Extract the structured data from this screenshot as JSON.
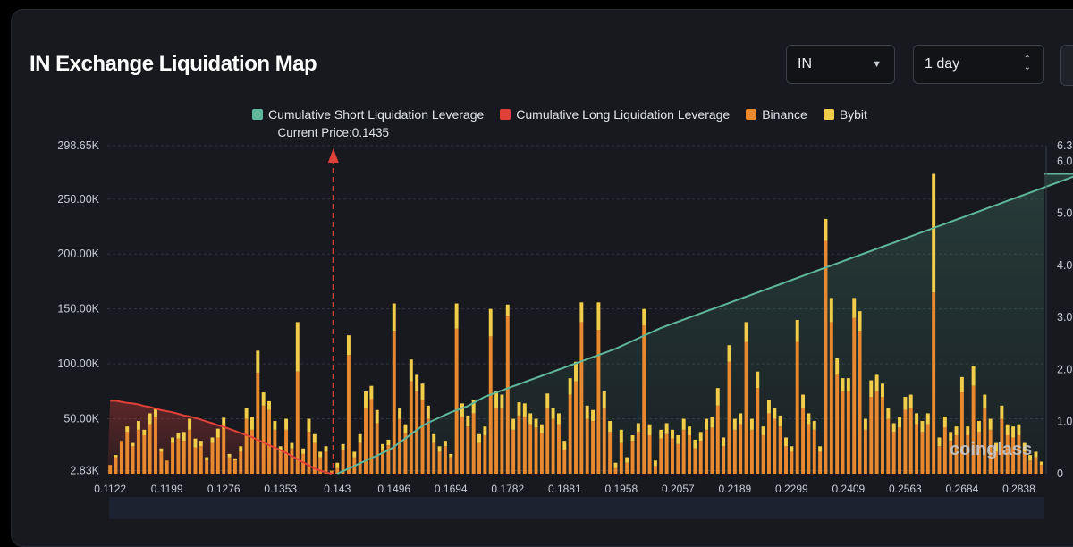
{
  "header": {
    "title": "IN Exchange Liquidation Map",
    "symbol_select": "IN",
    "range_select": "1 day"
  },
  "colors": {
    "short_cum": "#5fb79a",
    "long_cum": "#e0403a",
    "binance": "#e8892f",
    "bybit": "#f2cd4a"
  },
  "chart_data": {
    "type": "bar",
    "legend": [
      {
        "key": "short",
        "label": "Cumulative Short Liquidation Leverage",
        "color": "#5fb79a"
      },
      {
        "key": "long",
        "label": "Cumulative Long Liquidation Leverage",
        "color": "#e0403a"
      },
      {
        "key": "binance",
        "label": "Binance",
        "color": "#e8892f"
      },
      {
        "key": "bybit",
        "label": "Bybit",
        "color": "#f2cd4a"
      }
    ],
    "current_price_label": "Current Price:0.1435",
    "current_price": 0.1435,
    "x_ticks": [
      "0.1122",
      "0.1199",
      "0.1276",
      "0.1353",
      "0.143",
      "0.1496",
      "0.1694",
      "0.1782",
      "0.1881",
      "0.1958",
      "0.2057",
      "0.2189",
      "0.2299",
      "0.2409",
      "0.2563",
      "0.2684",
      "0.2838"
    ],
    "x_tick_index": [
      0,
      10,
      20,
      30,
      40,
      50,
      60,
      70,
      80,
      90,
      100,
      110,
      120,
      130,
      140,
      150,
      160
    ],
    "y_left_ticks": [
      "298.65K",
      "250.00K",
      "200.00K",
      "150.00K",
      "100.00K",
      "50.00K",
      "2.83K"
    ],
    "y_left_tick_values": [
      298650,
      250000,
      200000,
      150000,
      100000,
      50000,
      2830
    ],
    "y_right_ticks": [
      "6.3",
      "6.0",
      "5.0",
      "4.0",
      "3.0",
      "2.0",
      "1.0",
      "0"
    ],
    "y_right_tick_values": [
      6.3,
      6.0,
      5.0,
      4.0,
      3.0,
      2.0,
      1.0,
      0
    ],
    "ylim_left": [
      0,
      298650
    ],
    "ylim_right": [
      0,
      6.3
    ],
    "binance": [
      8000,
      15000,
      30000,
      38000,
      25000,
      40000,
      35000,
      45000,
      52000,
      20000,
      12000,
      28000,
      32000,
      30000,
      40000,
      24000,
      25000,
      12000,
      28000,
      33000,
      41000,
      15000,
      12000,
      20000,
      50000,
      40000,
      92000,
      62000,
      58000,
      40000,
      20000,
      40000,
      23000,
      93000,
      18000,
      38000,
      28000,
      15000,
      20000,
      2830,
      5000,
      22000,
      108000,
      15000,
      28000,
      60000,
      68000,
      46000,
      22000,
      26000,
      130000,
      50000,
      37000,
      84000,
      75000,
      67000,
      50000,
      28000,
      20000,
      25000,
      15000,
      132000,
      52000,
      43000,
      55000,
      28000,
      35000,
      125000,
      60000,
      60000,
      144000,
      40000,
      53000,
      52000,
      45000,
      42000,
      37000,
      60000,
      50000,
      45000,
      22000,
      72000,
      84000,
      138000,
      50000,
      48000,
      131000,
      60000,
      38000,
      5000,
      28000,
      10000,
      30000,
      38000,
      135000,
      35000,
      7000,
      32000,
      36000,
      32000,
      27000,
      40000,
      35000,
      23000,
      30000,
      40000,
      42000,
      62000,
      25000,
      102000,
      40000,
      45000,
      120000,
      40000,
      78000,
      35000,
      55000,
      50000,
      43000,
      25000,
      20000,
      120000,
      60000,
      45000,
      40000,
      20000,
      212000,
      138000,
      90000,
      75000,
      75000,
      142000,
      130000,
      40000,
      70000,
      75000,
      70000,
      50000,
      38000,
      42000,
      58000,
      60000,
      45000,
      38000,
      45000,
      165000,
      25000,
      42000,
      30000,
      35000,
      74000,
      35000,
      80000,
      38000,
      60000,
      40000,
      20000,
      50000,
      35000,
      33000,
      35000,
      20000,
      12000,
      15000,
      8000
    ],
    "bybit": [
      0,
      0,
      0,
      0,
      0,
      0,
      0,
      0,
      0,
      0,
      0,
      0,
      0,
      0,
      0,
      0,
      0,
      0,
      0,
      0,
      0,
      0,
      0,
      0,
      0,
      0,
      0,
      0,
      0,
      0,
      0,
      0,
      0,
      0,
      0,
      0,
      0,
      0,
      0,
      0,
      0,
      0,
      0,
      0,
      0,
      0,
      0,
      0,
      0,
      0,
      0,
      0,
      0,
      0,
      0,
      0,
      0,
      0,
      0,
      0,
      0,
      0,
      0,
      0,
      0,
      0,
      0,
      0,
      0,
      0,
      0,
      0,
      0,
      0,
      0,
      0,
      0,
      0,
      0,
      0,
      0,
      0,
      0,
      0,
      0,
      0,
      0,
      0,
      0,
      0,
      0,
      0,
      0,
      0,
      0,
      0,
      0,
      0,
      0,
      0,
      0,
      0,
      0,
      0,
      0,
      0,
      0,
      0,
      0,
      0,
      0,
      0,
      0,
      0,
      0,
      0,
      0,
      0,
      0,
      0,
      0,
      0,
      0,
      0,
      0,
      0,
      0,
      0,
      0,
      0,
      0,
      0,
      0,
      0,
      0,
      0,
      0,
      0,
      0,
      0,
      0,
      0,
      0,
      0,
      0,
      0,
      0,
      0,
      0,
      0,
      0,
      0,
      0,
      0,
      0,
      0,
      0,
      0,
      0,
      0,
      0,
      0,
      0,
      0,
      0,
      0,
      0
    ],
    "bybit_values": [
      0,
      2000,
      0,
      5000,
      3000,
      8000,
      5000,
      10000,
      8000,
      3000,
      0,
      5000,
      5000,
      8000,
      10000,
      8000,
      5000,
      3000,
      5000,
      8000,
      10000,
      3000,
      2000,
      5000,
      10000,
      12000,
      20000,
      12000,
      8000,
      8000,
      5000,
      10000,
      5000,
      45000,
      5000,
      12000,
      8000,
      5000,
      5000,
      0,
      5000,
      5000,
      18000,
      5000,
      8000,
      15000,
      12000,
      12000,
      5000,
      5000,
      25000,
      10000,
      8000,
      20000,
      15000,
      15000,
      12000,
      8000,
      5000,
      5000,
      3000,
      23000,
      12000,
      10000,
      12000,
      8000,
      8000,
      25000,
      15000,
      12000,
      10000,
      10000,
      12000,
      12000,
      10000,
      8000,
      8000,
      13000,
      10000,
      10000,
      8000,
      15000,
      18000,
      18000,
      12000,
      10000,
      25000,
      15000,
      10000,
      5000,
      12000,
      5000,
      5000,
      8000,
      15000,
      10000,
      5000,
      8000,
      10000,
      8000,
      8000,
      10000,
      8000,
      8000,
      8000,
      10000,
      10000,
      16000,
      8000,
      15000,
      10000,
      10000,
      18000,
      10000,
      15000,
      8000,
      12000,
      10000,
      10000,
      8000,
      5000,
      20000,
      12000,
      10000,
      8000,
      5000,
      20000,
      22000,
      15000,
      12000,
      12000,
      18000,
      18000,
      10000,
      15000,
      15000,
      12000,
      10000,
      8000,
      10000,
      12000,
      12000,
      10000,
      10000,
      10000,
      108000,
      8000,
      10000,
      8000,
      8000,
      14000,
      8000,
      18000,
      10000,
      12000,
      10000,
      8000,
      12000,
      10000,
      10000,
      10000,
      8000,
      5000,
      5000,
      3000
    ],
    "long_cum": [
      1.4,
      1.4,
      1.38,
      1.36,
      1.35,
      1.33,
      1.3,
      1.28,
      1.25,
      1.22,
      1.2,
      1.18,
      1.15,
      1.12,
      1.1,
      1.07,
      1.04,
      1.0,
      0.97,
      0.93,
      0.9,
      0.86,
      0.82,
      0.78,
      0.74,
      0.7,
      0.65,
      0.6,
      0.55,
      0.5,
      0.45,
      0.4,
      0.34,
      0.28,
      0.22,
      0.16,
      0.1,
      0.06,
      0.03,
      0.0
    ],
    "short_cum": [
      0.0,
      0.05,
      0.1,
      0.15,
      0.2,
      0.25,
      0.3,
      0.35,
      0.4,
      0.45,
      0.52,
      0.6,
      0.68,
      0.76,
      0.84,
      0.92,
      0.98,
      1.03,
      1.08,
      1.13,
      1.18,
      1.22,
      1.26,
      1.3,
      1.36,
      1.42,
      1.48,
      1.52,
      1.56,
      1.6,
      1.64,
      1.68,
      1.72,
      1.76,
      1.8,
      1.84,
      1.88,
      1.92,
      1.96,
      2.0,
      2.04,
      2.08,
      2.12,
      2.16,
      2.2,
      2.24,
      2.28,
      2.32,
      2.36,
      2.4,
      2.45,
      2.5,
      2.55,
      2.6,
      2.65,
      2.7,
      2.75,
      2.8,
      2.84,
      2.88,
      2.92,
      2.96,
      3.0,
      3.04,
      3.08,
      3.12,
      3.16,
      3.2,
      3.24,
      3.28,
      3.32,
      3.36,
      3.4,
      3.44,
      3.48,
      3.52,
      3.56,
      3.6,
      3.64,
      3.68,
      3.72,
      3.76,
      3.8,
      3.84,
      3.88,
      3.92,
      3.96,
      4.0,
      4.04,
      4.08,
      4.12,
      4.16,
      4.2,
      4.24,
      4.28,
      4.32,
      4.36,
      4.4,
      4.44,
      4.48,
      4.52,
      4.56,
      4.6,
      4.64,
      4.68,
      4.72,
      4.76,
      4.8,
      4.84,
      4.88,
      4.92,
      4.96,
      5.0,
      5.04,
      5.08,
      5.12,
      5.16,
      5.2,
      5.24,
      5.28,
      5.32,
      5.36,
      5.4,
      5.44,
      5.48,
      5.52,
      5.56,
      5.6,
      5.64,
      5.68,
      5.72,
      5.76
    ],
    "watermark": "coinglass"
  }
}
